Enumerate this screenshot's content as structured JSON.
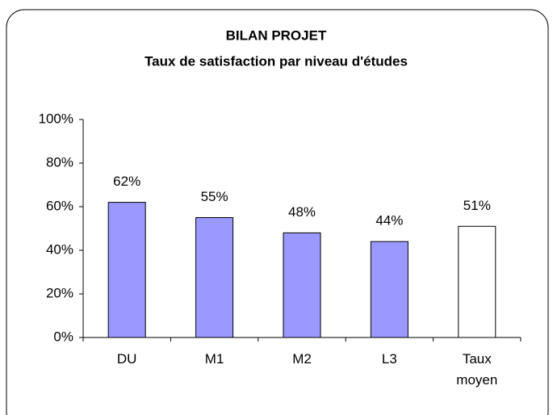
{
  "chart_data": {
    "type": "bar",
    "title": "BILAN PROJET",
    "subtitle": "Taux de satisfaction par niveau d'études",
    "categories": [
      "DU",
      "M1",
      "M2",
      "L3",
      "Taux moyen"
    ],
    "values": [
      62,
      55,
      48,
      44,
      51
    ],
    "value_labels": [
      "62%",
      "55%",
      "48%",
      "44%",
      "51%"
    ],
    "colors": [
      "#9999ff",
      "#9999ff",
      "#9999ff",
      "#9999ff",
      "#ffffff"
    ],
    "ylim": [
      0,
      100
    ],
    "yticks": [
      {
        "value": 0,
        "label": "0%"
      },
      {
        "value": 20,
        "label": "20%"
      },
      {
        "value": 40,
        "label": "40%"
      },
      {
        "value": 60,
        "label": "60%"
      },
      {
        "value": 80,
        "label": "80%"
      },
      {
        "value": 100,
        "label": "100%"
      }
    ],
    "grid": false
  }
}
